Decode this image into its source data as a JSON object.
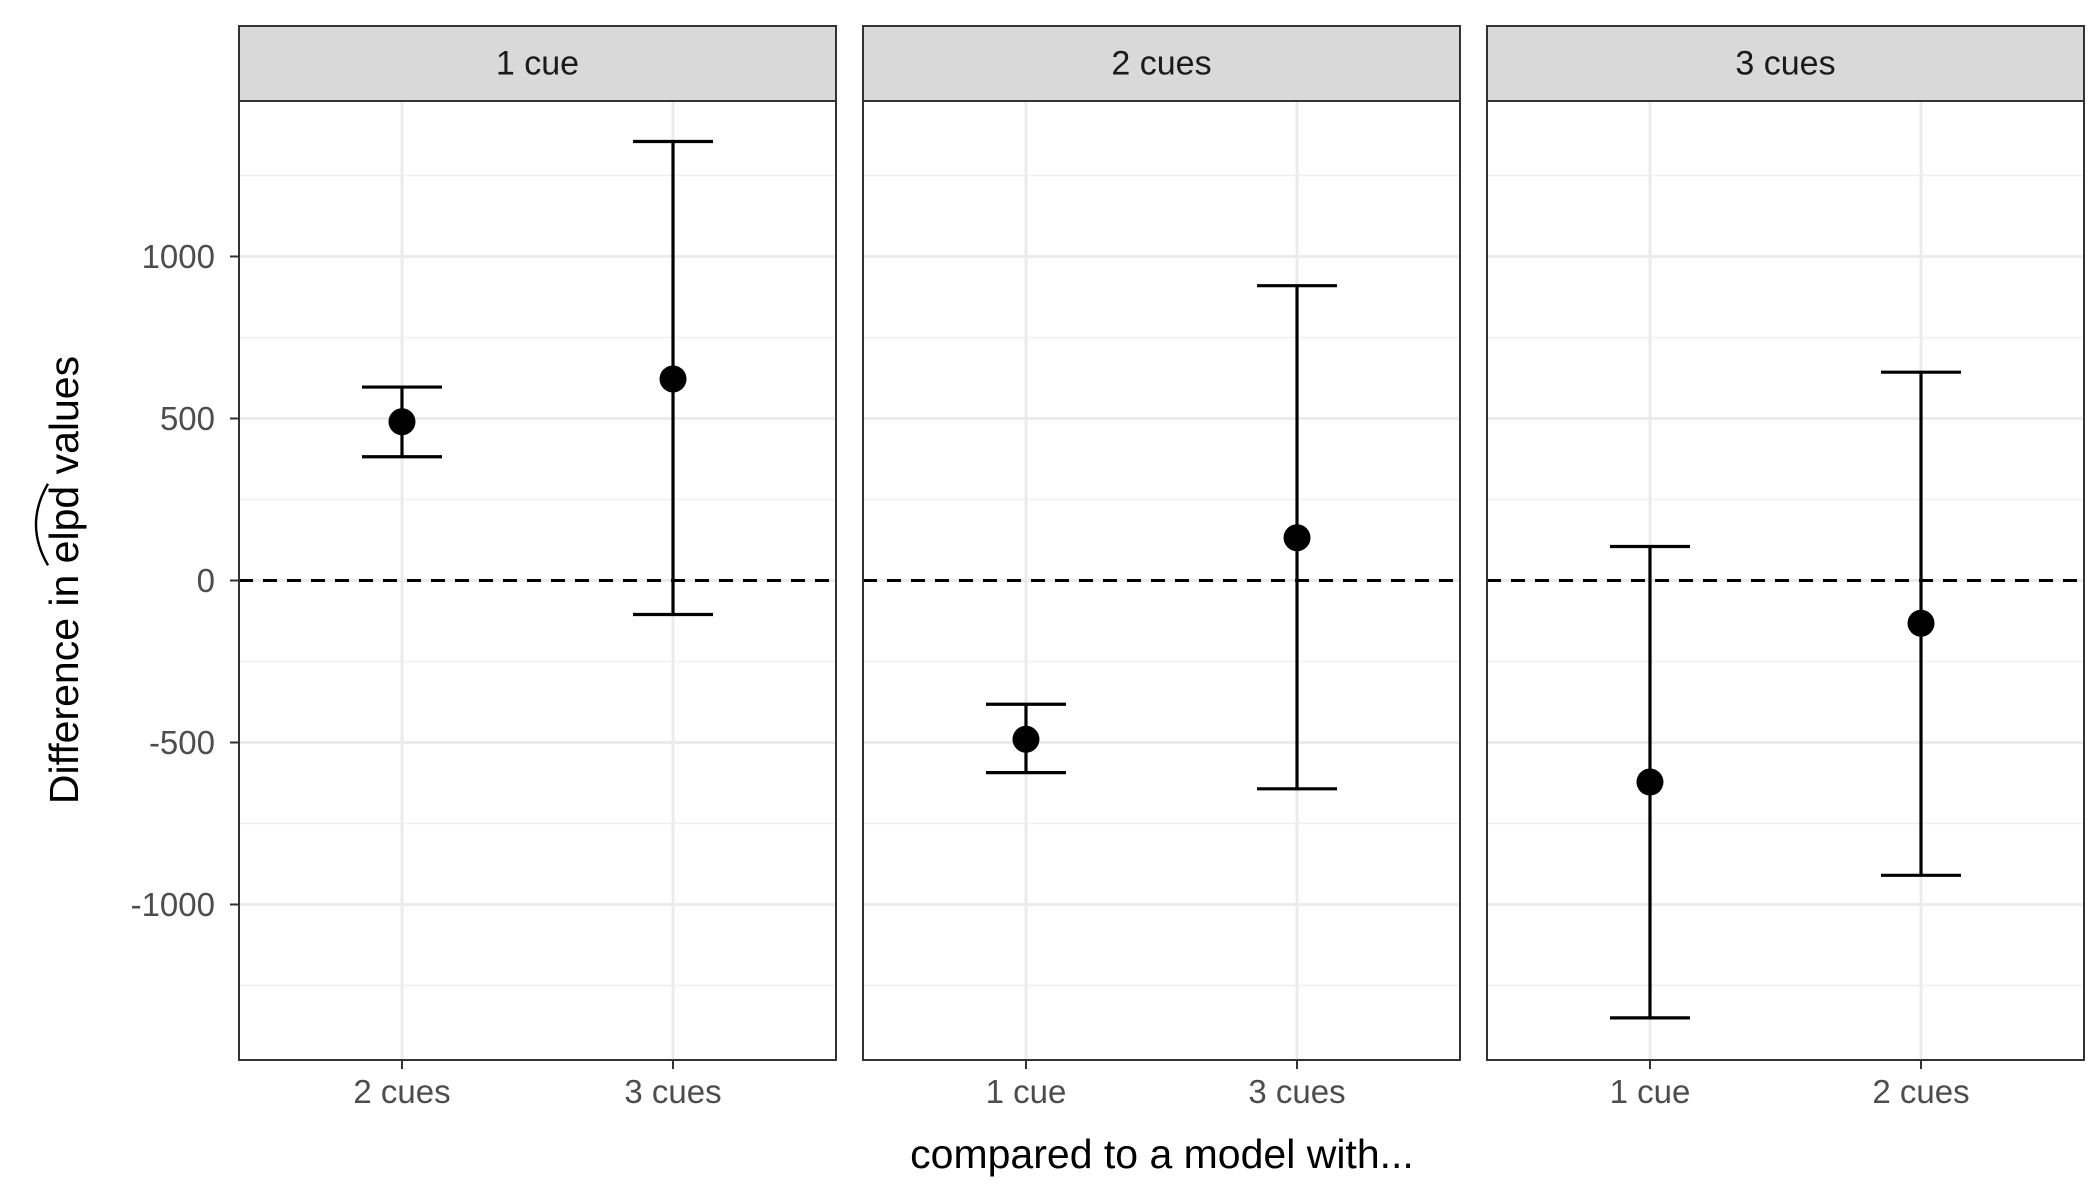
{
  "chart_data": {
    "type": "errorbar",
    "facet_by": "model",
    "xlabel": "compared to a model with...",
    "ylabel": "Difference in elpd values",
    "ylabel_hat_word": "elpd",
    "ylim": [
      -1480,
      1480
    ],
    "yticks": [
      1000,
      500,
      0,
      -500,
      -1000
    ],
    "ytick_labels": [
      "1000",
      "500",
      "0",
      "-500",
      "-1000"
    ],
    "reference_line": {
      "y": 0,
      "style": "dashed"
    },
    "grid": true,
    "facets": [
      {
        "label": "1 cue",
        "points": [
          {
            "x": "2 cues",
            "estimate": 490,
            "lower": 382,
            "upper": 597
          },
          {
            "x": "3 cues",
            "estimate": 622,
            "lower": -105,
            "upper": 1355
          }
        ]
      },
      {
        "label": "2 cues",
        "points": [
          {
            "x": "1 cue",
            "estimate": -490,
            "lower": -593,
            "upper": -382
          },
          {
            "x": "3 cues",
            "estimate": 132,
            "lower": -643,
            "upper": 910
          }
        ]
      },
      {
        "label": "3 cues",
        "points": [
          {
            "x": "1 cue",
            "estimate": -622,
            "lower": -1350,
            "upper": 105
          },
          {
            "x": "2 cues",
            "estimate": -132,
            "lower": -910,
            "upper": 643
          }
        ]
      }
    ]
  }
}
